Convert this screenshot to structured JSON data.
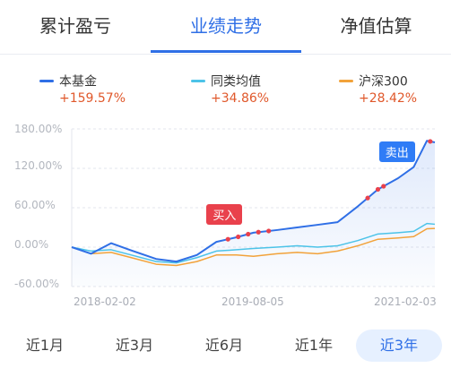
{
  "tabs": [
    "累计盈亏",
    "业绩走势",
    "净值估算"
  ],
  "active_tab_index": 1,
  "legend": [
    {
      "name": "本基金",
      "value": "+159.57%",
      "color": "#2f6fe6"
    },
    {
      "name": "同类均值",
      "value": "+34.86%",
      "color": "#4cc3e8"
    },
    {
      "name": "沪深300",
      "value": "+28.42%",
      "color": "#f2a23a"
    }
  ],
  "chart_data": {
    "type": "line",
    "x_range": [
      "2018-02-02",
      "2021-02-03"
    ],
    "x_ticks": [
      "2018-02-02",
      "2019-08-05",
      "2021-02-03"
    ],
    "y_ticks": [
      "180.00%",
      "120.00%",
      "60.00%",
      "0.00%",
      "-60.00%"
    ],
    "ylim": [
      -60,
      180
    ],
    "series": [
      {
        "name": "本基金",
        "color": "#2f6fe6",
        "x": [
          "2018-02-02",
          "2018-04-01",
          "2018-06-01",
          "2018-08-01",
          "2018-10-15",
          "2018-12-15",
          "2019-02-15",
          "2019-04-15",
          "2019-06-15",
          "2019-08-05",
          "2019-10-15",
          "2019-12-15",
          "2020-02-15",
          "2020-04-15",
          "2020-06-15",
          "2020-08-15",
          "2020-10-15",
          "2020-12-01",
          "2021-01-10",
          "2021-02-03"
        ],
        "values": [
          0,
          -10,
          6,
          -5,
          -18,
          -22,
          -12,
          8,
          15,
          22,
          26,
          30,
          34,
          38,
          62,
          88,
          105,
          122,
          162,
          159.57
        ]
      },
      {
        "name": "同类均值",
        "color": "#4cc3e8",
        "x": [
          "2018-02-02",
          "2018-04-01",
          "2018-06-01",
          "2018-08-01",
          "2018-10-15",
          "2018-12-15",
          "2019-02-15",
          "2019-04-15",
          "2019-06-15",
          "2019-08-05",
          "2019-10-15",
          "2019-12-15",
          "2020-02-15",
          "2020-04-15",
          "2020-06-15",
          "2020-08-15",
          "2020-10-15",
          "2020-12-01",
          "2021-01-10",
          "2021-02-03"
        ],
        "values": [
          0,
          -6,
          -4,
          -12,
          -22,
          -24,
          -16,
          -6,
          -4,
          -2,
          0,
          2,
          0,
          2,
          10,
          20,
          22,
          24,
          36,
          34.86
        ]
      },
      {
        "name": "沪深300",
        "color": "#f2a23a",
        "x": [
          "2018-02-02",
          "2018-04-01",
          "2018-06-01",
          "2018-08-01",
          "2018-10-15",
          "2018-12-15",
          "2019-02-15",
          "2019-04-15",
          "2019-06-15",
          "2019-08-05",
          "2019-10-15",
          "2019-12-15",
          "2020-02-15",
          "2020-04-15",
          "2020-06-15",
          "2020-08-15",
          "2020-10-15",
          "2020-12-01",
          "2021-01-10",
          "2021-02-03"
        ],
        "values": [
          0,
          -10,
          -8,
          -16,
          -26,
          -28,
          -22,
          -12,
          -12,
          -14,
          -10,
          -8,
          -10,
          -6,
          2,
          12,
          14,
          16,
          28,
          28.42
        ]
      }
    ],
    "markers": [
      {
        "label": "买入",
        "date": "2019-05-15",
        "y": 22,
        "type": "buy"
      },
      {
        "label": "卖出",
        "date": "2020-09-20",
        "y": 95,
        "type": "sell"
      }
    ]
  },
  "ranges": [
    "近1月",
    "近3月",
    "近6月",
    "近1年",
    "近3年"
  ],
  "active_range_index": 4
}
